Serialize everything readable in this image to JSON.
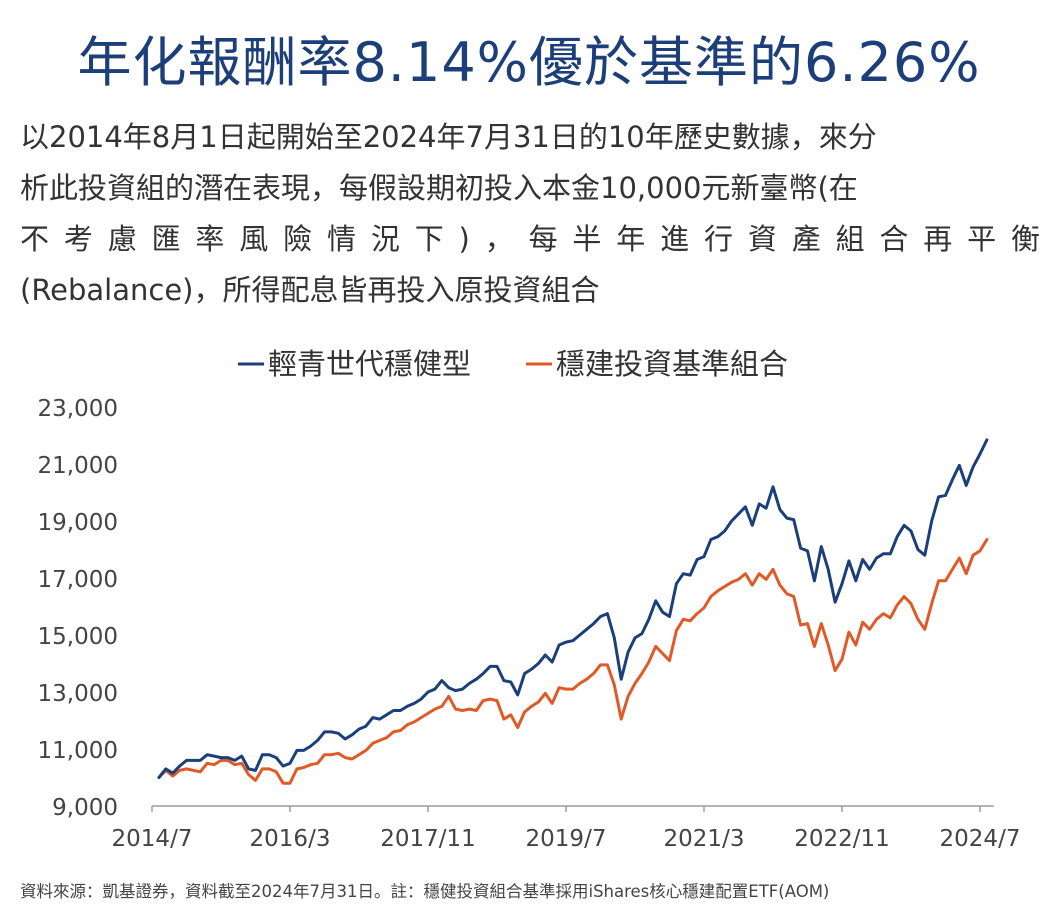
{
  "header": {
    "title": "年化報酬率8.14%優於基準的6.26%",
    "description_lines": [
      "以2014年8月1日起開始至2024年7月31日的10年歷史數據，來分",
      "析此投資組的潛在表現，每假設期初投入本金10,000元新臺幣(在",
      "不考慮匯率風險情況下)，每半年進行資產組合再平衡",
      "(Rebalance)，所得配息皆再投入原投資組合"
    ]
  },
  "footnote": "資料來源：凱基證券，資料截至2024年7月31日。註：穩健投資組合基準採用iShares核心穩建配置ETF(AOM)",
  "chart_data": {
    "type": "line",
    "title": "",
    "xlabel": "",
    "ylabel": "",
    "ylim": [
      9000,
      23000
    ],
    "yticks": [
      "9,000",
      "11,000",
      "13,000",
      "15,000",
      "17,000",
      "19,000",
      "21,000",
      "23,000"
    ],
    "ytick_values": [
      9000,
      11000,
      13000,
      15000,
      17000,
      19000,
      21000,
      23000
    ],
    "xticks": [
      "2014/7",
      "2016/3",
      "2017/11",
      "2019/7",
      "2021/3",
      "2022/11",
      "2024/7"
    ],
    "xtick_months": [
      0,
      20,
      40,
      60,
      80,
      100,
      120
    ],
    "x_unit": "months since 2014/7",
    "grid": false,
    "legend_position": "top-center",
    "series": [
      {
        "name": "輕青世代穩健型",
        "color": "#1b3f7a",
        "points": [
          [
            1,
            10000
          ],
          [
            2,
            10300
          ],
          [
            3,
            10150
          ],
          [
            4,
            10400
          ],
          [
            5,
            10600
          ],
          [
            6,
            10600
          ],
          [
            7,
            10600
          ],
          [
            8,
            10800
          ],
          [
            9,
            10750
          ],
          [
            10,
            10700
          ],
          [
            11,
            10700
          ],
          [
            12,
            10600
          ],
          [
            13,
            10750
          ],
          [
            14,
            10300
          ],
          [
            15,
            10250
          ],
          [
            16,
            10800
          ],
          [
            17,
            10800
          ],
          [
            18,
            10700
          ],
          [
            19,
            10400
          ],
          [
            20,
            10500
          ],
          [
            21,
            10950
          ],
          [
            22,
            10950
          ],
          [
            23,
            11100
          ],
          [
            24,
            11300
          ],
          [
            25,
            11600
          ],
          [
            26,
            11600
          ],
          [
            27,
            11550
          ],
          [
            28,
            11350
          ],
          [
            29,
            11500
          ],
          [
            30,
            11700
          ],
          [
            31,
            11800
          ],
          [
            32,
            12100
          ],
          [
            33,
            12050
          ],
          [
            34,
            12200
          ],
          [
            35,
            12350
          ],
          [
            36,
            12350
          ],
          [
            37,
            12500
          ],
          [
            38,
            12600
          ],
          [
            39,
            12750
          ],
          [
            40,
            13000
          ],
          [
            41,
            13100
          ],
          [
            42,
            13400
          ],
          [
            43,
            13150
          ],
          [
            44,
            13050
          ],
          [
            45,
            13100
          ],
          [
            46,
            13300
          ],
          [
            47,
            13450
          ],
          [
            48,
            13650
          ],
          [
            49,
            13900
          ],
          [
            50,
            13900
          ],
          [
            51,
            13400
          ],
          [
            52,
            13350
          ],
          [
            53,
            12900
          ],
          [
            54,
            13650
          ],
          [
            55,
            13800
          ],
          [
            56,
            14000
          ],
          [
            57,
            14300
          ],
          [
            58,
            14050
          ],
          [
            59,
            14650
          ],
          [
            60,
            14750
          ],
          [
            61,
            14800
          ],
          [
            62,
            15000
          ],
          [
            63,
            15200
          ],
          [
            64,
            15400
          ],
          [
            65,
            15650
          ],
          [
            66,
            15750
          ],
          [
            67,
            14900
          ],
          [
            68,
            13450
          ],
          [
            69,
            14400
          ],
          [
            70,
            14900
          ],
          [
            71,
            15050
          ],
          [
            72,
            15550
          ],
          [
            73,
            16200
          ],
          [
            74,
            15800
          ],
          [
            75,
            15650
          ],
          [
            76,
            16800
          ],
          [
            77,
            17150
          ],
          [
            78,
            17100
          ],
          [
            79,
            17650
          ],
          [
            80,
            17750
          ],
          [
            81,
            18350
          ],
          [
            82,
            18450
          ],
          [
            83,
            18650
          ],
          [
            84,
            19000
          ],
          [
            85,
            19250
          ],
          [
            86,
            19500
          ],
          [
            87,
            18850
          ],
          [
            88,
            19600
          ],
          [
            89,
            19450
          ],
          [
            90,
            20200
          ],
          [
            91,
            19400
          ],
          [
            92,
            19100
          ],
          [
            93,
            19050
          ],
          [
            94,
            18050
          ],
          [
            95,
            17950
          ],
          [
            96,
            16900
          ],
          [
            97,
            18100
          ],
          [
            98,
            17300
          ],
          [
            99,
            16150
          ],
          [
            100,
            16800
          ],
          [
            101,
            17600
          ],
          [
            102,
            16900
          ],
          [
            103,
            17650
          ],
          [
            104,
            17300
          ],
          [
            105,
            17700
          ],
          [
            106,
            17850
          ],
          [
            107,
            17850
          ],
          [
            108,
            18450
          ],
          [
            109,
            18850
          ],
          [
            110,
            18650
          ],
          [
            111,
            18000
          ],
          [
            112,
            17800
          ],
          [
            113,
            19000
          ],
          [
            114,
            19850
          ],
          [
            115,
            19900
          ],
          [
            116,
            20450
          ],
          [
            117,
            20950
          ],
          [
            118,
            20250
          ],
          [
            119,
            20900
          ],
          [
            120,
            21350
          ],
          [
            121,
            21850
          ]
        ]
      },
      {
        "name": "穩建投資基準組合",
        "color": "#e05a28",
        "points": [
          [
            1,
            10000
          ],
          [
            2,
            10250
          ],
          [
            3,
            10050
          ],
          [
            4,
            10250
          ],
          [
            5,
            10300
          ],
          [
            6,
            10250
          ],
          [
            7,
            10200
          ],
          [
            8,
            10500
          ],
          [
            9,
            10450
          ],
          [
            10,
            10600
          ],
          [
            11,
            10600
          ],
          [
            12,
            10450
          ],
          [
            13,
            10500
          ],
          [
            14,
            10100
          ],
          [
            15,
            9900
          ],
          [
            16,
            10300
          ],
          [
            17,
            10300
          ],
          [
            18,
            10200
          ],
          [
            19,
            9800
          ],
          [
            20,
            9800
          ],
          [
            21,
            10300
          ],
          [
            22,
            10350
          ],
          [
            23,
            10450
          ],
          [
            24,
            10500
          ],
          [
            25,
            10800
          ],
          [
            26,
            10800
          ],
          [
            27,
            10850
          ],
          [
            28,
            10700
          ],
          [
            29,
            10650
          ],
          [
            30,
            10800
          ],
          [
            31,
            10950
          ],
          [
            32,
            11200
          ],
          [
            33,
            11300
          ],
          [
            34,
            11400
          ],
          [
            35,
            11600
          ],
          [
            36,
            11650
          ],
          [
            37,
            11850
          ],
          [
            38,
            11950
          ],
          [
            39,
            12100
          ],
          [
            40,
            12250
          ],
          [
            41,
            12400
          ],
          [
            42,
            12500
          ],
          [
            43,
            12850
          ],
          [
            44,
            12400
          ],
          [
            45,
            12350
          ],
          [
            46,
            12400
          ],
          [
            47,
            12350
          ],
          [
            48,
            12700
          ],
          [
            49,
            12750
          ],
          [
            50,
            12700
          ],
          [
            51,
            12050
          ],
          [
            52,
            12200
          ],
          [
            53,
            11750
          ],
          [
            54,
            12300
          ],
          [
            55,
            12500
          ],
          [
            56,
            12650
          ],
          [
            57,
            12950
          ],
          [
            58,
            12600
          ],
          [
            59,
            13150
          ],
          [
            60,
            13100
          ],
          [
            61,
            13100
          ],
          [
            62,
            13300
          ],
          [
            63,
            13450
          ],
          [
            64,
            13650
          ],
          [
            65,
            13950
          ],
          [
            66,
            13950
          ],
          [
            67,
            13250
          ],
          [
            68,
            12050
          ],
          [
            69,
            12850
          ],
          [
            70,
            13300
          ],
          [
            71,
            13650
          ],
          [
            72,
            14050
          ],
          [
            73,
            14600
          ],
          [
            74,
            14350
          ],
          [
            75,
            14100
          ],
          [
            76,
            15150
          ],
          [
            77,
            15550
          ],
          [
            78,
            15500
          ],
          [
            79,
            15750
          ],
          [
            80,
            15950
          ],
          [
            81,
            16350
          ],
          [
            82,
            16550
          ],
          [
            83,
            16700
          ],
          [
            84,
            16850
          ],
          [
            85,
            16950
          ],
          [
            86,
            17150
          ],
          [
            87,
            16750
          ],
          [
            88,
            17150
          ],
          [
            89,
            16950
          ],
          [
            90,
            17300
          ],
          [
            91,
            16750
          ],
          [
            92,
            16450
          ],
          [
            93,
            16350
          ],
          [
            94,
            15350
          ],
          [
            95,
            15400
          ],
          [
            96,
            14600
          ],
          [
            97,
            15400
          ],
          [
            98,
            14650
          ],
          [
            99,
            13750
          ],
          [
            100,
            14150
          ],
          [
            101,
            15100
          ],
          [
            102,
            14650
          ],
          [
            103,
            15450
          ],
          [
            104,
            15200
          ],
          [
            105,
            15550
          ],
          [
            106,
            15750
          ],
          [
            107,
            15600
          ],
          [
            108,
            16050
          ],
          [
            109,
            16350
          ],
          [
            110,
            16100
          ],
          [
            111,
            15550
          ],
          [
            112,
            15200
          ],
          [
            113,
            16100
          ],
          [
            114,
            16900
          ],
          [
            115,
            16900
          ],
          [
            116,
            17300
          ],
          [
            117,
            17700
          ],
          [
            118,
            17150
          ],
          [
            119,
            17800
          ],
          [
            120,
            17950
          ],
          [
            121,
            18350
          ]
        ]
      }
    ]
  }
}
